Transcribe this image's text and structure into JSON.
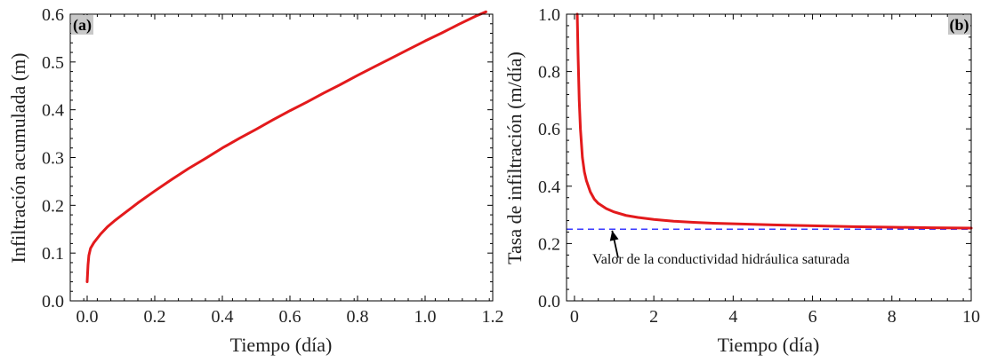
{
  "colors": {
    "curve": "#e31a1c",
    "reference": "#3a3aff",
    "panel_label_bg": "#c8c8c8"
  },
  "chart_data": [
    {
      "type": "line",
      "panel_label": "(a)",
      "xlabel": "Tiempo (día)",
      "ylabel": "Infiltración acumulada (m)",
      "xlim": [
        -0.05,
        1.2
      ],
      "ylim": [
        0.0,
        0.6
      ],
      "xticks": [
        "0.0",
        "0.2",
        "0.4",
        "0.6",
        "0.8",
        "1.0",
        "1.2"
      ],
      "yticks": [
        "0.0",
        "0.1",
        "0.2",
        "0.3",
        "0.4",
        "0.5",
        "0.6"
      ],
      "grid": false,
      "series": [
        {
          "x": [
            0.0,
            0.0025,
            0.005,
            0.01,
            0.02,
            0.04,
            0.06,
            0.08,
            0.1,
            0.15,
            0.2,
            0.25,
            0.3,
            0.35,
            0.4,
            0.45,
            0.5,
            0.55,
            0.6,
            0.65,
            0.7,
            0.75,
            0.8,
            0.85,
            0.9,
            0.95,
            1.0,
            1.05,
            1.1,
            1.15,
            1.18
          ],
          "y": [
            0.04,
            0.075,
            0.095,
            0.11,
            0.122,
            0.14,
            0.155,
            0.167,
            0.178,
            0.205,
            0.23,
            0.254,
            0.277,
            0.298,
            0.32,
            0.34,
            0.359,
            0.379,
            0.398,
            0.416,
            0.435,
            0.453,
            0.472,
            0.49,
            0.508,
            0.526,
            0.544,
            0.561,
            0.579,
            0.596,
            0.605
          ]
        }
      ]
    },
    {
      "type": "line",
      "panel_label": "(b)",
      "xlabel": "Tiempo (día)",
      "ylabel": "Tasa de infiltración (m/día)",
      "xlim": [
        -0.2,
        10
      ],
      "ylim": [
        0.0,
        1.0
      ],
      "xticks": [
        "0",
        "2",
        "4",
        "6",
        "8",
        "10"
      ],
      "yticks": [
        "0.0",
        "0.2",
        "0.4",
        "0.6",
        "0.8",
        "1.0"
      ],
      "grid": false,
      "series": [
        {
          "x": [
            0.07,
            0.09,
            0.12,
            0.15,
            0.2,
            0.25,
            0.3,
            0.4,
            0.5,
            0.6,
            0.8,
            1.0,
            1.3,
            1.6,
            2.0,
            2.5,
            3.0,
            3.5,
            4.0,
            5.0,
            6.0,
            7.0,
            8.0,
            9.0,
            10.0
          ],
          "y": [
            1.0,
            0.86,
            0.7,
            0.6,
            0.5,
            0.45,
            0.42,
            0.38,
            0.355,
            0.34,
            0.322,
            0.31,
            0.298,
            0.291,
            0.284,
            0.278,
            0.274,
            0.271,
            0.269,
            0.265,
            0.262,
            0.259,
            0.257,
            0.255,
            0.254
          ]
        }
      ],
      "reference_line": {
        "y": 0.25,
        "style": "dashed"
      },
      "annotation": {
        "text": "Valor de la conductividad hidráulica saturada",
        "arrow_from": [
          1.1,
          0.15
        ],
        "arrow_to": [
          0.95,
          0.245
        ],
        "text_at": [
          0.45,
          0.13
        ]
      }
    }
  ]
}
